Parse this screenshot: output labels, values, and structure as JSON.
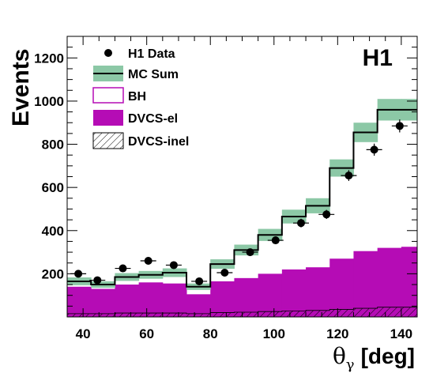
{
  "chart_data": {
    "type": "histogram",
    "experiment_label": "H1",
    "xlabel": "θγ [deg]",
    "xlabel_main": "θ",
    "xlabel_sub": "γ",
    "xlabel_unit": "[deg]",
    "ylabel": "Events",
    "xlim": [
      35,
      145
    ],
    "ylim": [
      0,
      1300
    ],
    "x_ticks": [
      40,
      60,
      80,
      100,
      120,
      140
    ],
    "y_ticks": [
      200,
      400,
      600,
      800,
      1000,
      1200
    ],
    "bin_edges": [
      35,
      42.5,
      50,
      57.5,
      65,
      72.5,
      80,
      87.5,
      95,
      102.5,
      110,
      117.5,
      125,
      132.5,
      140,
      145
    ],
    "series": [
      {
        "name": "H1 Data",
        "style": "points",
        "x": [
          38.5,
          44.5,
          52.5,
          60.5,
          68.5,
          76.5,
          84.5,
          92.5,
          100.5,
          108.5,
          116.5,
          123.5,
          131.5,
          139.5
        ],
        "values": [
          200,
          170,
          225,
          260,
          240,
          165,
          205,
          300,
          355,
          435,
          475,
          655,
          775,
          885
        ],
        "errors": [
          13,
          12,
          14,
          15,
          15,
          12,
          13,
          16,
          18,
          20,
          21,
          25,
          28,
          30
        ]
      },
      {
        "name": "MC Sum",
        "style": "step-band",
        "values": [
          165,
          150,
          185,
          195,
          205,
          140,
          245,
          310,
          380,
          465,
          515,
          690,
          855,
          960,
          960
        ],
        "band_halfwidth": [
          18,
          15,
          18,
          18,
          20,
          15,
          22,
          25,
          28,
          32,
          35,
          40,
          45,
          50,
          50
        ]
      },
      {
        "name": "BH",
        "style": "hollow"
      },
      {
        "name": "DVCS-el",
        "style": "filled",
        "values": [
          140,
          130,
          150,
          160,
          155,
          105,
          165,
          180,
          200,
          220,
          230,
          270,
          305,
          320,
          325
        ]
      },
      {
        "name": "DVCS-inel",
        "style": "hatched",
        "values": [
          15,
          15,
          18,
          18,
          18,
          15,
          20,
          22,
          25,
          28,
          30,
          35,
          40,
          45,
          45
        ]
      }
    ],
    "colors": {
      "band": "#8cc8a6",
      "dvcs_el": "#b50cb5",
      "bh": "#b50cb5",
      "line": "#000000"
    },
    "legend": {
      "position": "top-left",
      "entries": [
        "H1 Data",
        "MC Sum",
        "BH",
        "DVCS-el",
        "DVCS-inel"
      ]
    },
    "grid": false
  }
}
